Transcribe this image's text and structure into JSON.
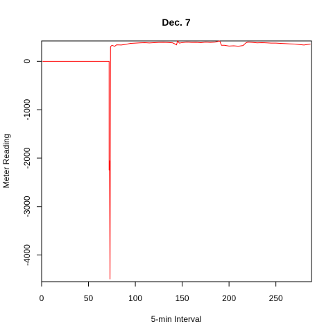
{
  "chart_data": {
    "type": "line",
    "title": "Dec. 7",
    "xlabel": "5-min Interval",
    "ylabel": "Meter Reading",
    "xlim": [
      0,
      288
    ],
    "ylim": [
      -4550,
      420
    ],
    "x_ticks": [
      0,
      50,
      100,
      150,
      200,
      250
    ],
    "y_ticks": [
      0,
      -1000,
      -2000,
      -3000,
      -4000
    ],
    "grid": false,
    "line_color": "#ff0000",
    "series": [
      {
        "points": [
          [
            1,
            0
          ],
          [
            20,
            0
          ],
          [
            40,
            0
          ],
          [
            60,
            0
          ],
          [
            72,
            0
          ],
          [
            72,
            -2250
          ],
          [
            72.5,
            -2050
          ],
          [
            73,
            -4500
          ],
          [
            73.5,
            300
          ],
          [
            75,
            330
          ],
          [
            78,
            310
          ],
          [
            80,
            340
          ],
          [
            85,
            335
          ],
          [
            90,
            350
          ],
          [
            95,
            370
          ],
          [
            100,
            375
          ],
          [
            105,
            380
          ],
          [
            110,
            385
          ],
          [
            115,
            378
          ],
          [
            120,
            385
          ],
          [
            125,
            390
          ],
          [
            130,
            392
          ],
          [
            135,
            388
          ],
          [
            140,
            380
          ],
          [
            144,
            340
          ],
          [
            145,
            420
          ],
          [
            147,
            375
          ],
          [
            150,
            385
          ],
          [
            155,
            395
          ],
          [
            160,
            390
          ],
          [
            165,
            392
          ],
          [
            170,
            385
          ],
          [
            175,
            395
          ],
          [
            180,
            390
          ],
          [
            185,
            395
          ],
          [
            190,
            420
          ],
          [
            192,
            330
          ],
          [
            195,
            330
          ],
          [
            200,
            315
          ],
          [
            205,
            320
          ],
          [
            210,
            310
          ],
          [
            215,
            325
          ],
          [
            218,
            380
          ],
          [
            220,
            395
          ],
          [
            225,
            390
          ],
          [
            230,
            380
          ],
          [
            235,
            385
          ],
          [
            240,
            380
          ],
          [
            245,
            375
          ],
          [
            250,
            375
          ],
          [
            255,
            370
          ],
          [
            260,
            365
          ],
          [
            265,
            360
          ],
          [
            270,
            355
          ],
          [
            275,
            345
          ],
          [
            280,
            335
          ],
          [
            285,
            350
          ],
          [
            287,
            355
          ]
        ]
      }
    ]
  }
}
